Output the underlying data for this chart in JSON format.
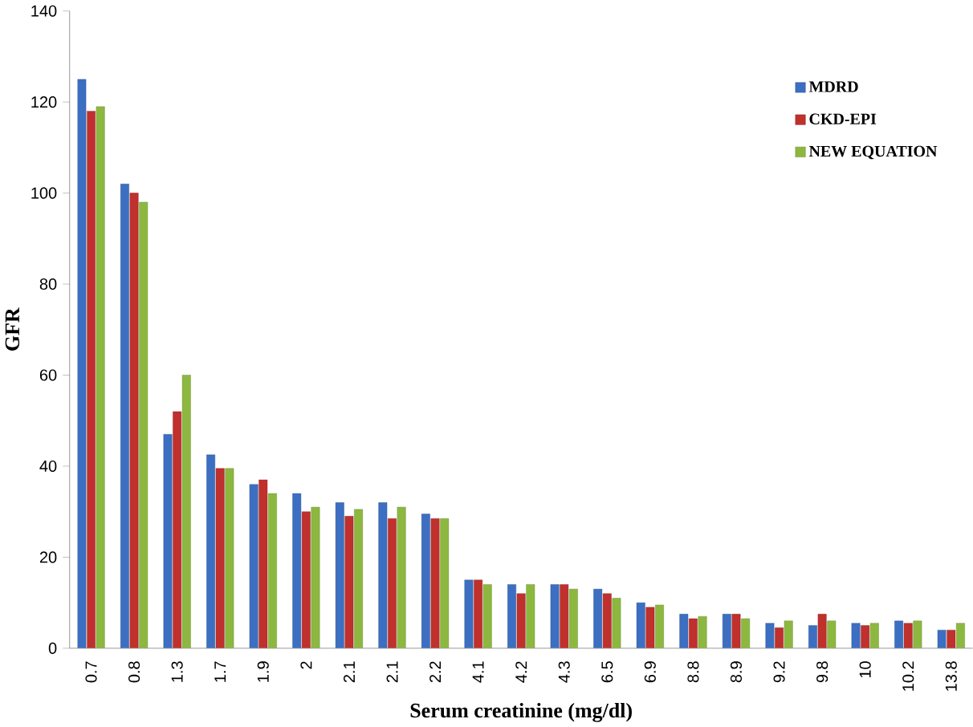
{
  "chart_data": {
    "type": "bar",
    "xlabel": "Serum creatinine (mg/dl)",
    "ylabel": "GFR",
    "categories": [
      "0.7",
      "0.8",
      "1.3",
      "1.7",
      "1.9",
      "2",
      "2.1",
      "2.1",
      "2.2",
      "4.1",
      "4.2",
      "4.3",
      "6.5",
      "6.9",
      "8.8",
      "8.9",
      "9.2",
      "9.8",
      "10",
      "10.2",
      "13.8"
    ],
    "series": [
      {
        "name": "MDRD",
        "color": "#3c6fc2",
        "values": [
          125,
          102,
          47,
          42.5,
          36,
          34,
          32,
          32,
          29.5,
          15,
          14,
          14,
          13,
          10,
          7.5,
          7.5,
          5.5,
          5,
          5.5,
          6,
          4
        ]
      },
      {
        "name": "CKD-EPI",
        "color": "#c0302c",
        "values": [
          118,
          100,
          52,
          39.5,
          37,
          30,
          29,
          28.5,
          28.5,
          15,
          12,
          14,
          12,
          9,
          6.5,
          7.5,
          4.5,
          7.5,
          5,
          5.5,
          4
        ]
      },
      {
        "name": "NEW EQUATION",
        "color": "#8db840",
        "values": [
          119,
          98,
          60,
          39.5,
          34,
          31,
          30.5,
          31,
          28.5,
          14,
          14,
          13,
          11,
          9.5,
          7,
          6.5,
          6,
          6,
          5.5,
          6,
          5.5
        ]
      }
    ],
    "ylim": [
      0,
      140
    ],
    "yticks": [
      0,
      20,
      40,
      60,
      80,
      100,
      120,
      140
    ],
    "legend": "top right"
  }
}
